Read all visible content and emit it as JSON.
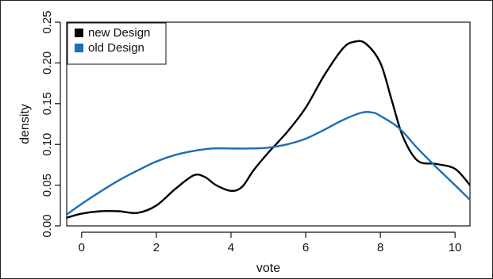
{
  "chart_data": {
    "type": "line",
    "title": "",
    "xlabel": "vote",
    "ylabel": "density",
    "xlim": [
      -0.4,
      10.4
    ],
    "ylim": [
      0.0,
      0.25
    ],
    "x_ticks": [
      0,
      2,
      4,
      6,
      8,
      10
    ],
    "y_ticks": [
      0.0,
      0.05,
      0.1,
      0.15,
      0.2,
      0.25
    ],
    "y_tick_labels": [
      "0.00",
      "0.05",
      "0.10",
      "0.15",
      "0.20",
      "0.25"
    ],
    "grid": false,
    "legend": {
      "position": "top-left",
      "entries": [
        "new Design",
        "old Design"
      ]
    },
    "series": [
      {
        "name": "new Design",
        "color": "#000000",
        "points": [
          [
            -0.4,
            0.01
          ],
          [
            0.0,
            0.015
          ],
          [
            0.5,
            0.018
          ],
          [
            1.0,
            0.018
          ],
          [
            1.5,
            0.016
          ],
          [
            2.0,
            0.025
          ],
          [
            2.5,
            0.045
          ],
          [
            3.0,
            0.062
          ],
          [
            3.3,
            0.06
          ],
          [
            3.6,
            0.05
          ],
          [
            4.0,
            0.043
          ],
          [
            4.3,
            0.048
          ],
          [
            4.6,
            0.068
          ],
          [
            5.0,
            0.09
          ],
          [
            5.5,
            0.115
          ],
          [
            6.0,
            0.145
          ],
          [
            6.5,
            0.185
          ],
          [
            7.0,
            0.218
          ],
          [
            7.3,
            0.226
          ],
          [
            7.6,
            0.224
          ],
          [
            8.0,
            0.2
          ],
          [
            8.3,
            0.155
          ],
          [
            8.6,
            0.11
          ],
          [
            9.0,
            0.08
          ],
          [
            9.5,
            0.076
          ],
          [
            10.0,
            0.07
          ],
          [
            10.4,
            0.05
          ]
        ]
      },
      {
        "name": "old Design",
        "color": "#1f6db3",
        "points": [
          [
            -0.4,
            0.014
          ],
          [
            0.0,
            0.027
          ],
          [
            0.5,
            0.042
          ],
          [
            1.0,
            0.056
          ],
          [
            1.5,
            0.068
          ],
          [
            2.0,
            0.079
          ],
          [
            2.5,
            0.087
          ],
          [
            3.0,
            0.092
          ],
          [
            3.5,
            0.095
          ],
          [
            4.0,
            0.095
          ],
          [
            4.5,
            0.095
          ],
          [
            5.0,
            0.096
          ],
          [
            5.5,
            0.1
          ],
          [
            6.0,
            0.107
          ],
          [
            6.5,
            0.118
          ],
          [
            7.0,
            0.13
          ],
          [
            7.5,
            0.139
          ],
          [
            7.8,
            0.139
          ],
          [
            8.0,
            0.135
          ],
          [
            8.5,
            0.12
          ],
          [
            9.0,
            0.095
          ],
          [
            9.5,
            0.072
          ],
          [
            10.0,
            0.05
          ],
          [
            10.4,
            0.032
          ]
        ]
      }
    ]
  }
}
